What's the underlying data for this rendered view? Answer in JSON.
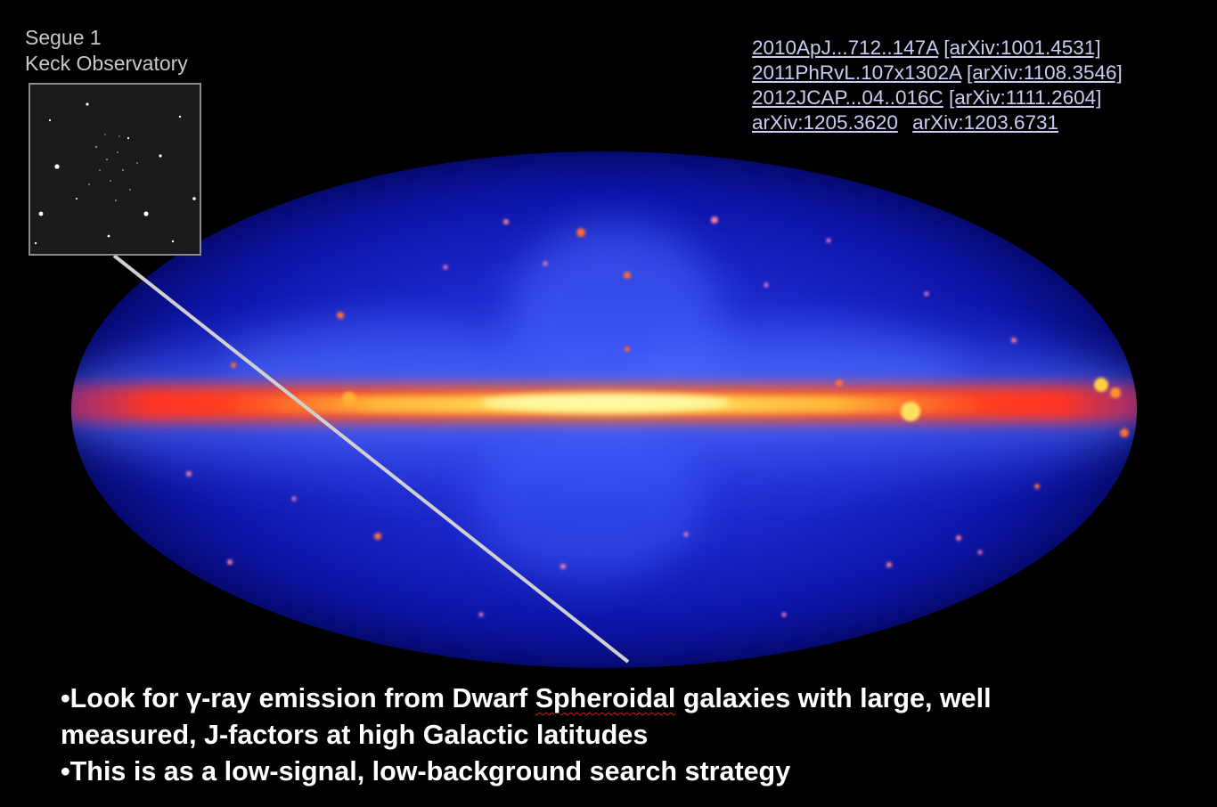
{
  "inset": {
    "title": "Segue 1",
    "subtitle": "Keck Observatory"
  },
  "references": {
    "line1": {
      "bibcode": "2010ApJ...712..147A",
      "arxiv": "[arXiv:1001.4531]"
    },
    "line2": {
      "bibcode": "2011PhRvL.107x1302A",
      "arxiv": "[arXiv:1108.3546]"
    },
    "line3": {
      "bibcode": "2012JCAP...04..016C",
      "arxiv": "[arXiv:1111.2604]"
    },
    "line4": {
      "first": "arXiv:1205.3620",
      "second": "arXiv:1203.6731"
    }
  },
  "bullets": {
    "b1_prefix": "•Look for ",
    "b1_gamma": "γ",
    "b1_mid": "-ray emission from Dwarf ",
    "b1_flagged": "Spheroidal",
    "b1_suffix": " galaxies with large, well",
    "b1_line2": "measured, J-factors at high Galactic latitudes",
    "b2": "•This is as a low-signal, low-background search strategy"
  },
  "colors": {
    "background": "#000000",
    "sky_background": "#0a10a0",
    "galactic_plane": "#ff3a1a",
    "plane_core": "#ffe060",
    "link_text": "#c9ccf2",
    "body_text": "#ffffff",
    "label_text": "#c8c8c8",
    "pointer_line": "#d0d0d0",
    "spellcheck_squiggle": "#d21e1e"
  }
}
